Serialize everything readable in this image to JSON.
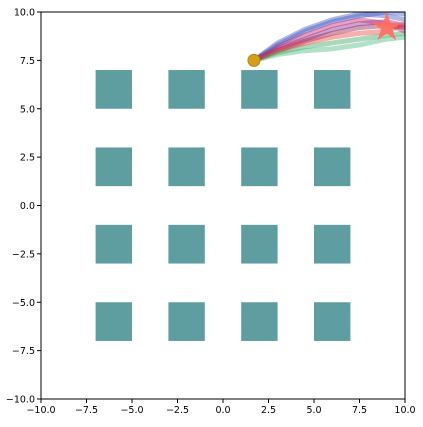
{
  "chart_data": {
    "type": "trajectory",
    "xlim": [
      -10,
      10
    ],
    "ylim": [
      -10,
      10
    ],
    "xticks": [
      {
        "value": -10,
        "label": "−10.0"
      },
      {
        "value": -7.5,
        "label": "−7.5"
      },
      {
        "value": -5,
        "label": "−5.0"
      },
      {
        "value": -2.5,
        "label": "−2.5"
      },
      {
        "value": 0,
        "label": "0.0"
      },
      {
        "value": 2.5,
        "label": "2.5"
      },
      {
        "value": 5,
        "label": "5.0"
      },
      {
        "value": 7.5,
        "label": "7.5"
      },
      {
        "value": 10,
        "label": "10.0"
      }
    ],
    "yticks": [
      {
        "value": -10,
        "label": "−10.0"
      },
      {
        "value": -7.5,
        "label": "−7.5"
      },
      {
        "value": -5,
        "label": "−5.0"
      },
      {
        "value": -2.5,
        "label": "−2.5"
      },
      {
        "value": 0,
        "label": "0.0"
      },
      {
        "value": 2.5,
        "label": "2.5"
      },
      {
        "value": 5,
        "label": "5.0"
      },
      {
        "value": 7.5,
        "label": "7.5"
      },
      {
        "value": 10,
        "label": "10.0"
      }
    ],
    "obstacle_color": "#5f9ea0",
    "obstacles": [
      {
        "x": [
          -7,
          -5
        ],
        "y": [
          5,
          7
        ]
      },
      {
        "x": [
          -3,
          -1
        ],
        "y": [
          5,
          7
        ]
      },
      {
        "x": [
          1,
          3
        ],
        "y": [
          5,
          7
        ]
      },
      {
        "x": [
          5,
          7
        ],
        "y": [
          5,
          7
        ]
      },
      {
        "x": [
          -7,
          -5
        ],
        "y": [
          1,
          3
        ]
      },
      {
        "x": [
          -3,
          -1
        ],
        "y": [
          1,
          3
        ]
      },
      {
        "x": [
          1,
          3
        ],
        "y": [
          1,
          3
        ]
      },
      {
        "x": [
          5,
          7
        ],
        "y": [
          1,
          3
        ]
      },
      {
        "x": [
          -7,
          -5
        ],
        "y": [
          -3,
          -1
        ]
      },
      {
        "x": [
          -3,
          -1
        ],
        "y": [
          -3,
          -1
        ]
      },
      {
        "x": [
          1,
          3
        ],
        "y": [
          -3,
          -1
        ]
      },
      {
        "x": [
          5,
          7
        ],
        "y": [
          -3,
          -1
        ]
      },
      {
        "x": [
          -7,
          -5
        ],
        "y": [
          -7,
          -5
        ]
      },
      {
        "x": [
          -3,
          -1
        ],
        "y": [
          -7,
          -5
        ]
      },
      {
        "x": [
          1,
          3
        ],
        "y": [
          -7,
          -5
        ]
      },
      {
        "x": [
          5,
          7
        ],
        "y": [
          -7,
          -5
        ]
      }
    ],
    "series": [
      {
        "color": "#2b4fd8",
        "x": [
          1.7,
          3,
          4.5,
          6,
          7.5,
          9,
          10
        ],
        "y": [
          7.5,
          8.3,
          9,
          9.5,
          9.8,
          10,
          9.9
        ]
      },
      {
        "color": "#7b1fa2",
        "x": [
          1.7,
          3,
          4.5,
          6,
          7.5,
          9,
          10
        ],
        "y": [
          7.5,
          8.1,
          8.6,
          9.1,
          9.4,
          9.5,
          9.3
        ]
      },
      {
        "color": "#8b0a3a",
        "x": [
          1.7,
          3,
          4.5,
          6,
          7.5,
          9,
          10
        ],
        "y": [
          7.5,
          8.0,
          8.5,
          8.9,
          9.2,
          9.3,
          9.2
        ]
      },
      {
        "color": "#2e9e57",
        "x": [
          1.7,
          3,
          4.5,
          6,
          7.5,
          9,
          10
        ],
        "y": [
          7.5,
          7.9,
          8.2,
          8.4,
          8.6,
          8.8,
          8.9
        ]
      },
      {
        "color": "#3cb371",
        "x": [
          1.7,
          3,
          4.5,
          6,
          7.5,
          9,
          10
        ],
        "y": [
          7.5,
          7.8,
          8.0,
          8.1,
          8.3,
          8.6,
          8.7
        ]
      },
      {
        "color": "#c2185b",
        "x": [
          1.7,
          3,
          4.5,
          6,
          7.5,
          9,
          10
        ],
        "y": [
          7.5,
          8.2,
          8.8,
          9.3,
          9.6,
          9.4,
          9.0
        ]
      },
      {
        "color": "#3f51b5",
        "x": [
          1.7,
          3,
          4.5,
          6,
          7.5,
          9,
          10
        ],
        "y": [
          7.5,
          8.4,
          9.1,
          9.6,
          9.9,
          9.8,
          9.6
        ]
      },
      {
        "color": "#e53935",
        "x": [
          1.7,
          3,
          4.5,
          6,
          7.5,
          9,
          10
        ],
        "y": [
          7.5,
          8.0,
          8.4,
          8.7,
          8.9,
          9.0,
          9.4
        ]
      }
    ],
    "start": {
      "x": 1.7,
      "y": 7.5,
      "color": "#d4a017"
    },
    "goal": {
      "x": 9,
      "y": 9.2,
      "color": "#ff6f5e"
    }
  }
}
